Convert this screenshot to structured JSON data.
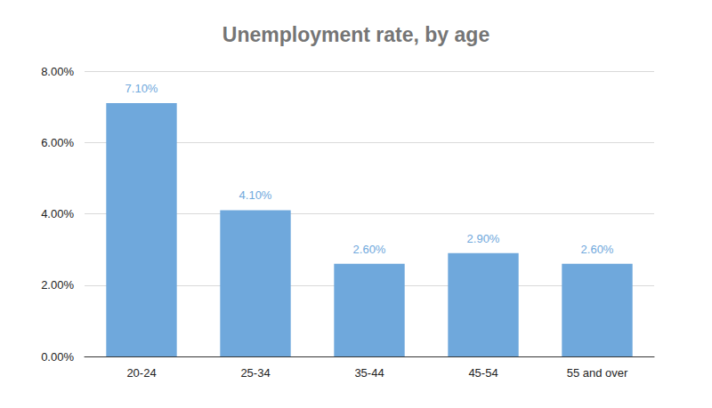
{
  "chart_data": {
    "type": "bar",
    "title": "Unemployment rate, by age",
    "categories": [
      "20-24",
      "25-34",
      "35-44",
      "45-54",
      "55 and over"
    ],
    "values": [
      7.1,
      4.1,
      2.6,
      2.9,
      2.6
    ],
    "value_labels": [
      "7.10%",
      "4.10%",
      "2.60%",
      "2.90%",
      "2.60%"
    ],
    "color": "#6fa8dc",
    "ylim": [
      0,
      8
    ],
    "yticks": [
      {
        "value": 0,
        "label": "0.00%"
      },
      {
        "value": 2,
        "label": "2.00%"
      },
      {
        "value": 4,
        "label": "4.00%"
      },
      {
        "value": 6,
        "label": "6.00%"
      },
      {
        "value": 8,
        "label": "8.00%"
      }
    ],
    "grid": true,
    "data_labels": true
  }
}
